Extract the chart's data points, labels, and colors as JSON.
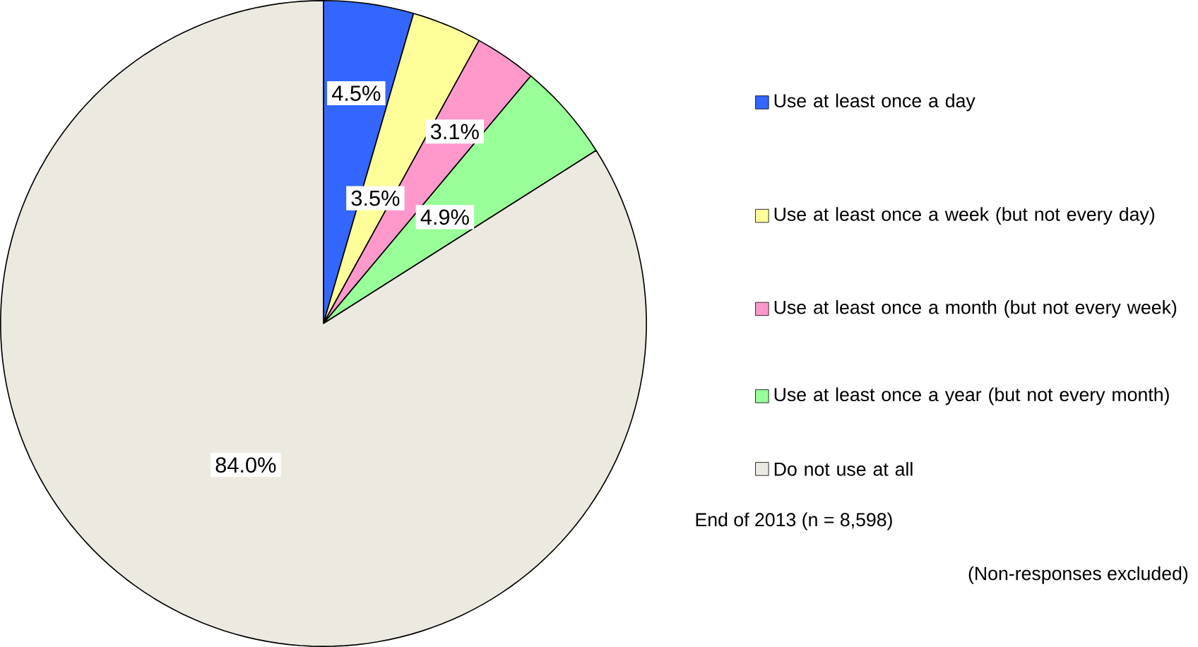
{
  "chart_data": {
    "type": "pie",
    "categories": [
      "Use at least once a day",
      "Use at least once a week (but not every day)",
      "Use at least once a month (but not every week)",
      "Use at least once a year (but not every month)",
      "Do not use at all"
    ],
    "values": [
      4.5,
      3.5,
      3.1,
      4.9,
      84.0
    ],
    "colors": [
      "#3366ff",
      "#ffff99",
      "#ff99cc",
      "#99ff99",
      "#ece9e0"
    ],
    "value_labels": [
      "4.5%",
      "3.5%",
      "3.1%",
      "4.9%",
      "84.0%"
    ],
    "legend": "right",
    "annotations": [
      "End of 2013 (n = 8,598)",
      "(Non-responses excluded)"
    ]
  }
}
